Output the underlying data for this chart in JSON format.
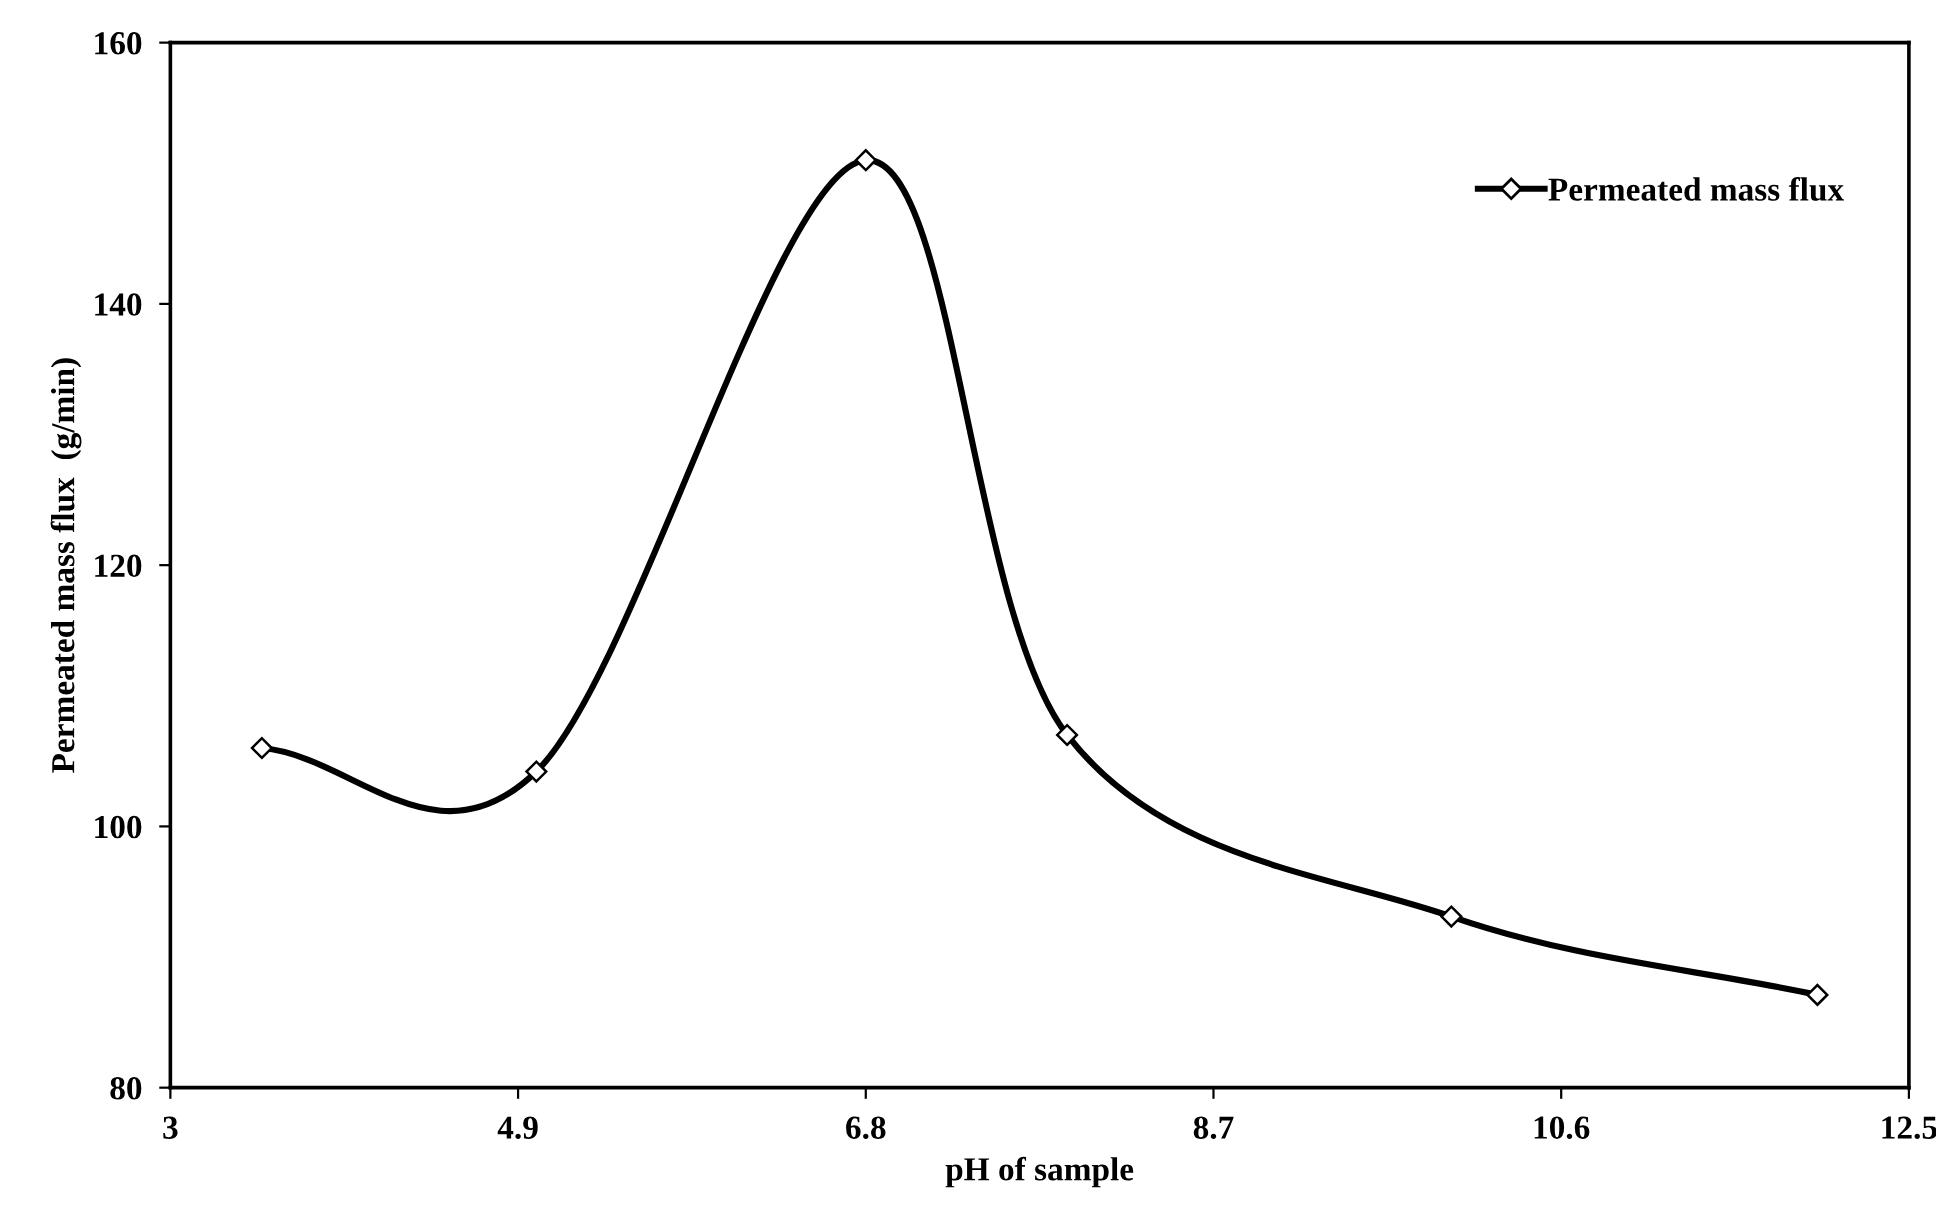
{
  "chart_data": {
    "type": "line",
    "xlabel": "pH of sample",
    "ylabel": "Permeated mass flux  (g/min)",
    "xlim": [
      3,
      12.5
    ],
    "xticks": [
      3,
      4.9,
      6.8,
      8.7,
      10.6,
      12.5
    ],
    "ylim": [
      80,
      160
    ],
    "yticks": [
      80,
      100,
      120,
      140,
      160
    ],
    "series": [
      {
        "name": "Permeated mass flux",
        "color": "#000000",
        "x": [
          3.5,
          5.0,
          6.8,
          7.9,
          10.0,
          12.0
        ],
        "values": [
          106,
          104.2,
          151,
          107,
          93.1,
          87.1
        ]
      }
    ],
    "marker": "diamond",
    "line_style": "solid",
    "grid": false,
    "legend": "top right"
  }
}
